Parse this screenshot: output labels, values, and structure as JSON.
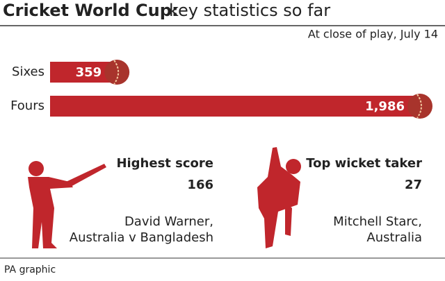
{
  "chart_data": {
    "type": "bar",
    "orientation": "horizontal",
    "title": "Cricket World Cup:",
    "subtitle": "key statistics so far",
    "note": "At close of play, July 14",
    "categories": [
      "Sixes",
      "Fours"
    ],
    "values": [
      359,
      1986
    ],
    "value_labels": [
      "359",
      "1,986"
    ],
    "color": "#c0262c"
  },
  "highlights": [
    {
      "heading": "Highest score",
      "value": "166",
      "name": "David Warner,",
      "detail": "Australia v Bangladesh"
    },
    {
      "heading": "Top wicket taker",
      "value": "27",
      "name": "Mitchell Starc,",
      "detail": "Australia"
    }
  ],
  "footer": "PA graphic"
}
